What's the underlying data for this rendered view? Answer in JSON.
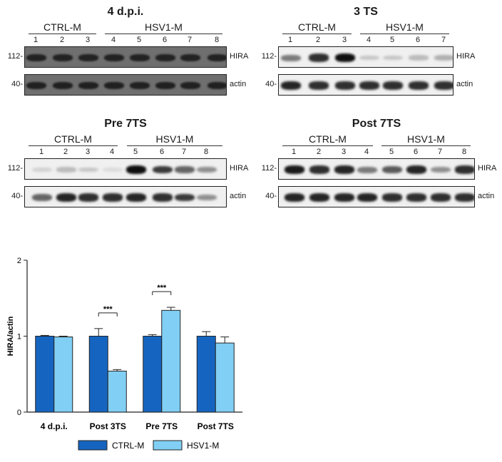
{
  "panels": [
    {
      "id": "p1",
      "title": "4 d.p.i.",
      "group1": "CTRL-M",
      "group2": "HSV1-M",
      "lanes": [
        "1",
        "2",
        "3",
        "4",
        "5",
        "6",
        "7",
        "8"
      ],
      "mw_top": "112-",
      "mw_bottom": "40-",
      "label_top": "HIRA",
      "label_bottom": "actin"
    },
    {
      "id": "p2",
      "title": "3 TS",
      "group1": "CTRL-M",
      "group2": "HSV1-M",
      "lanes": [
        "1",
        "2",
        "3",
        "4",
        "5",
        "6",
        "7"
      ],
      "mw_top": "112-",
      "mw_bottom": "40-",
      "label_top": "HIRA",
      "label_bottom": "actin"
    },
    {
      "id": "p3",
      "title": "Pre 7TS",
      "group1": "CTRL-M",
      "group2": "HSV1-M",
      "lanes": [
        "1",
        "2",
        "3",
        "4",
        "5",
        "6",
        "7",
        "8"
      ],
      "mw_top": "112-",
      "mw_bottom": "40-",
      "label_top": "HIRA",
      "label_bottom": "actin"
    },
    {
      "id": "p4",
      "title": "Post 7TS",
      "group1": "CTRL-M",
      "group2": "HSV1-M",
      "lanes": [
        "1",
        "2",
        "3",
        "4",
        "5",
        "6",
        "7",
        "8"
      ],
      "mw_top": "112-",
      "mw_bottom": "40-",
      "label_top": "HIRA",
      "label_bottom": "actin"
    }
  ],
  "chart_data": {
    "type": "bar",
    "categories": [
      "4 d.p.i.",
      "Post 3TS",
      "Pre 7TS",
      "Post 7TS"
    ],
    "series": [
      {
        "name": "CTRL-M",
        "values": [
          1.0,
          1.0,
          1.0,
          1.0
        ],
        "errors": [
          0.01,
          0.1,
          0.02,
          0.06
        ],
        "color": "#1565c0"
      },
      {
        "name": "HSV1-M",
        "values": [
          0.99,
          0.54,
          1.34,
          0.91
        ],
        "errors": [
          0.01,
          0.02,
          0.04,
          0.08
        ],
        "color": "#81cff4"
      }
    ],
    "ylabel": "HIRA/actin",
    "ylim": [
      0,
      2
    ],
    "yticks": [
      "0",
      "1",
      "2"
    ],
    "significance": [
      {
        "category": "Post 3TS",
        "label": "***"
      },
      {
        "category": "Pre 7TS",
        "label": "***"
      }
    ],
    "legend": "bottom"
  }
}
